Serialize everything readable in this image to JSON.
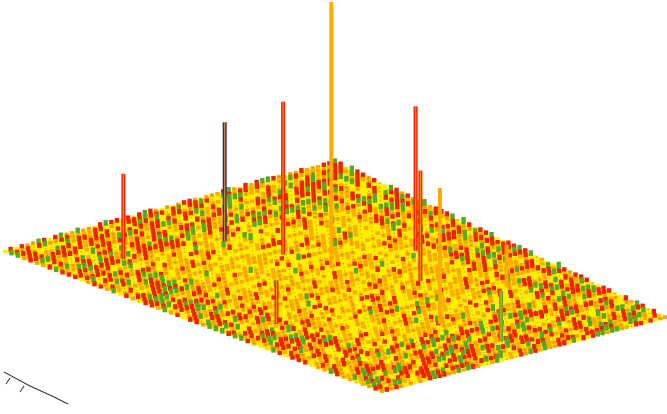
{
  "palette": {
    "background": "#ffffff",
    "low": "#ffee00",
    "mid": "#ffaa00",
    "high": "#ee2200",
    "accent_green": "#5aa82a",
    "accent_blue": "#2a2a8a",
    "grid_dot": "#8a6a00"
  },
  "chart_data": {
    "type": "surface3d",
    "title": "",
    "xlabel": "",
    "ylabel": "",
    "zlabel": "",
    "grid_size": 60,
    "background_range": [
      0,
      2
    ],
    "spikes": [
      {
        "x": 0.43,
        "y": 0.47,
        "z": 20,
        "color": "mid"
      },
      {
        "x": 0.32,
        "y": 0.5,
        "z": 9,
        "color": "high"
      },
      {
        "x": 0.45,
        "y": 0.22,
        "z": 8.5,
        "color": "high"
      },
      {
        "x": 0.78,
        "y": 0.52,
        "z": 8,
        "color": "mid"
      },
      {
        "x": 0.2,
        "y": 0.55,
        "z": 7,
        "color": "accent_blue"
      },
      {
        "x": 0.58,
        "y": 0.35,
        "z": 6.5,
        "color": "high"
      },
      {
        "x": 0.16,
        "y": 0.82,
        "z": 5,
        "color": "high"
      },
      {
        "x": 0.92,
        "y": 0.48,
        "z": 3,
        "color": "accent_green"
      },
      {
        "x": 0.6,
        "y": 0.85,
        "z": 2.5,
        "color": "high"
      },
      {
        "x": 0.7,
        "y": 0.2,
        "z": 2.5,
        "color": "mid"
      }
    ]
  }
}
